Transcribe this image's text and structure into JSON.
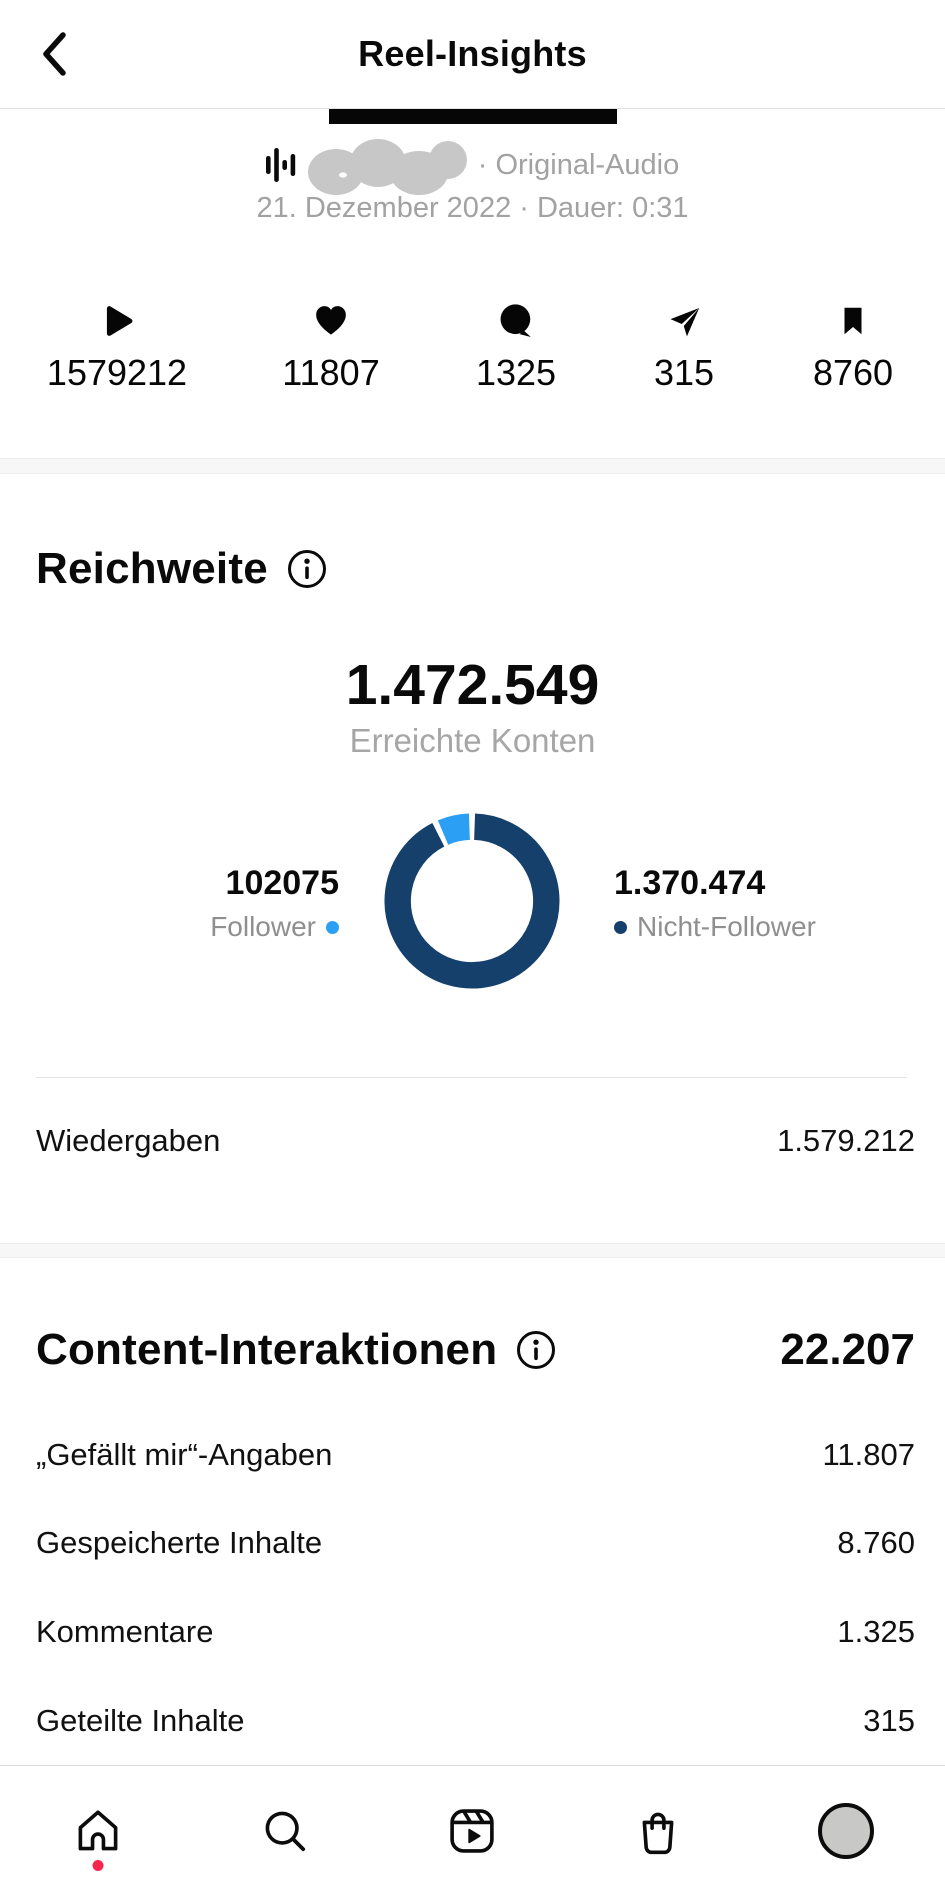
{
  "header": {
    "title": "Reel-Insights"
  },
  "audio": {
    "attribution": "· Original-Audio",
    "meta": "21. Dezember 2022 · Dauer: 0:31"
  },
  "stats": [
    {
      "icon": "play-icon",
      "value": "1579212"
    },
    {
      "icon": "heart-icon",
      "value": "11807"
    },
    {
      "icon": "comment-icon",
      "value": "1325"
    },
    {
      "icon": "share-icon",
      "value": "315"
    },
    {
      "icon": "bookmark-icon",
      "value": "8760"
    }
  ],
  "reach": {
    "title": "Reichweite",
    "total": "1.472.549",
    "subtitle": "Erreichte Konten",
    "legend": {
      "follower": {
        "value": "102075",
        "label": "Follower"
      },
      "non_follower": {
        "value": "1.370.474",
        "label": "Nicht-Follower"
      }
    },
    "rows": [
      {
        "label": "Wiedergaben",
        "value": "1.579.212"
      }
    ]
  },
  "interactions": {
    "title": "Content-Interaktionen",
    "total": "22.207",
    "rows": [
      {
        "label": "„Gefällt mir“-Angaben",
        "value": "11.807"
      },
      {
        "label": "Gespeicherte Inhalte",
        "value": "8.760"
      },
      {
        "label": "Kommentare",
        "value": "1.325"
      },
      {
        "label": "Geteilte Inhalte",
        "value": "315"
      }
    ]
  },
  "nav": {
    "items": [
      "home",
      "search",
      "reels",
      "shop",
      "profile"
    ],
    "badge_color": "#F8254E"
  },
  "colors": {
    "text": "#0a0a0a",
    "muted": "#a2a2a2",
    "band": "#f7f7f7"
  },
  "chart_data": {
    "type": "pie",
    "donut": true,
    "title": "Reichweite",
    "center_label": "Erreichte Konten",
    "total": 1472549,
    "slices": [
      {
        "name": "Follower",
        "value": 102075,
        "color": "#2B9FF4"
      },
      {
        "name": "Nicht-Follower",
        "value": 1370474,
        "color": "#15406B"
      }
    ],
    "legend_position": "sides",
    "gap_degrees": 2
  }
}
